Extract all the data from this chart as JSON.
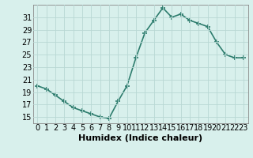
{
  "xlabel": "Humidex (Indice chaleur)",
  "x": [
    0,
    1,
    2,
    3,
    4,
    5,
    6,
    7,
    8,
    9,
    10,
    11,
    12,
    13,
    14,
    15,
    16,
    17,
    18,
    19,
    20,
    21,
    22,
    23
  ],
  "y": [
    20,
    19.5,
    18.5,
    17.5,
    16.5,
    16,
    15.5,
    15,
    14.8,
    17.5,
    20,
    24.5,
    28.5,
    30.5,
    32.5,
    31,
    31.5,
    30.5,
    30,
    29.5,
    27,
    25,
    24.5,
    24.5
  ],
  "line_color": "#2E7D6E",
  "marker": "+",
  "bg_color": "#D8F0EC",
  "grid_color": "#B8D8D4",
  "ylim": [
    14.0,
    33.0
  ],
  "yticks": [
    15,
    17,
    19,
    21,
    23,
    25,
    27,
    29,
    31
  ],
  "xlim": [
    -0.5,
    23.5
  ],
  "xticks": [
    0,
    1,
    2,
    3,
    4,
    5,
    6,
    7,
    8,
    9,
    10,
    11,
    12,
    13,
    14,
    15,
    16,
    17,
    18,
    19,
    20,
    21,
    22,
    23
  ],
  "xtick_labels": [
    "0",
    "1",
    "2",
    "3",
    "4",
    "5",
    "6",
    "7",
    "8",
    "9",
    "10",
    "11",
    "12",
    "13",
    "14",
    "15",
    "16",
    "17",
    "18",
    "19",
    "20",
    "21",
    "22",
    "23"
  ],
  "line_width": 1.2,
  "marker_size": 4,
  "marker_ew": 1.2,
  "tick_fontsize": 7,
  "xlabel_fontsize": 8
}
